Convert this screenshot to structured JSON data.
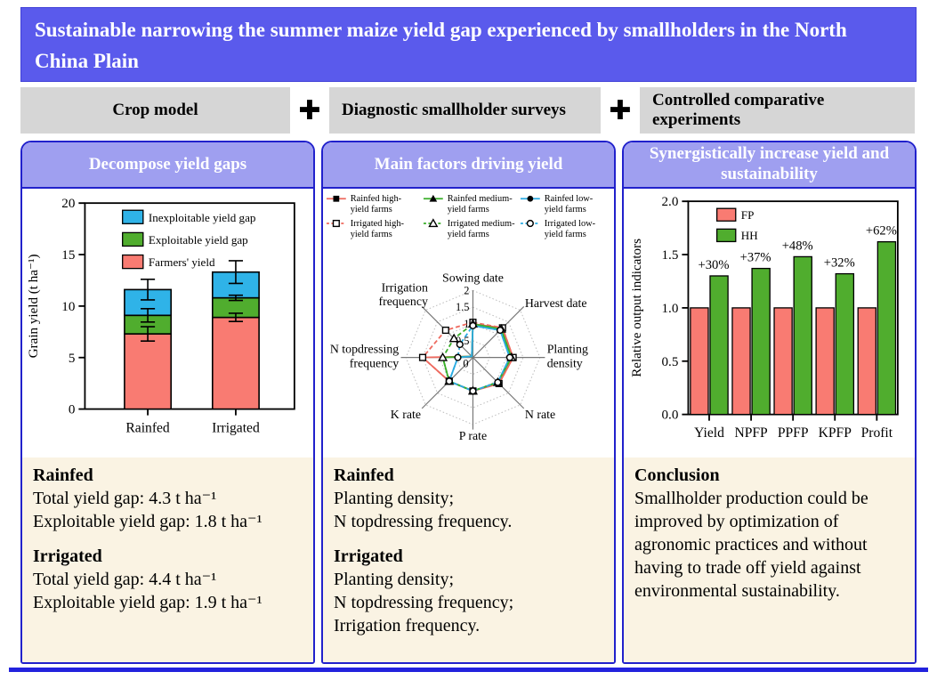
{
  "title": "Sustainable narrowing the summer maize yield gap experienced by smallholders in the North China Plain",
  "methods": {
    "plus": "✚",
    "items": [
      "Crop model",
      "Diagnostic smallholder surveys",
      "Controlled comparative experiments"
    ]
  },
  "colors": {
    "banner_blue": "#5a5aec",
    "header_lavender": "#9f9ff0",
    "panel_border_blue": "#2121cc",
    "method_gray": "#d6d6d6",
    "findings_cream": "#faf3e3",
    "salmon": "#f97b72",
    "green": "#50ad2e",
    "cyan_blue": "#2fb3e8",
    "line_red": "#ee6a5f",
    "line_green": "#3aae2a",
    "line_blue": "#29abe2"
  },
  "panels": [
    {
      "header": "Decompose yield gaps",
      "text": {
        "sections": [
          {
            "heading": "Rainfed",
            "lines": [
              "Total yield gap: 4.3 t ha⁻¹",
              "Exploitable yield gap: 1.8 t ha⁻¹"
            ]
          },
          {
            "heading": "Irrigated",
            "lines": [
              "Total yield gap: 4.4 t ha⁻¹",
              "Exploitable yield gap: 1.9 t ha⁻¹"
            ]
          }
        ]
      }
    },
    {
      "header": "Main factors driving yield",
      "text": {
        "sections": [
          {
            "heading": "Rainfed",
            "lines": [
              "Planting density;",
              "N topdressing frequency."
            ]
          },
          {
            "heading": "Irrigated",
            "lines": [
              "Planting density;",
              "N topdressing frequency;",
              "Irrigation frequency."
            ]
          }
        ]
      }
    },
    {
      "header": "Synergistically increase yield and sustainability",
      "text": {
        "sections": [
          {
            "heading": "Conclusion",
            "lines": [
              "Smallholder production could be improved by optimization of agronomic practices and without having to trade off yield against environmental sustainability."
            ]
          }
        ]
      }
    }
  ],
  "chart_data": [
    {
      "type": "bar",
      "subtype": "stacked",
      "categories": [
        "Rainfed",
        "Irrigated"
      ],
      "series": [
        {
          "name": "Farmers' yield",
          "color": "#f97b72",
          "values": [
            7.3,
            8.9
          ],
          "errors": [
            0.7,
            0.4
          ]
        },
        {
          "name": "Exploitable yield gap",
          "color": "#50ad2e",
          "values": [
            1.8,
            1.9
          ],
          "errors": [
            0.65,
            0.25
          ]
        },
        {
          "name": "Inexploitable yield gap",
          "color": "#2fb3e8",
          "values": [
            2.5,
            2.5
          ],
          "errors": [
            1.0,
            1.1
          ]
        }
      ],
      "ylabel": "Grain yield (t ha⁻¹)",
      "ylim": [
        0,
        20
      ],
      "yticks": [
        0,
        5,
        10,
        15,
        20
      ],
      "legend_position": "top-left-inside",
      "grid": false
    },
    {
      "type": "radar",
      "axes": [
        "Sowing date",
        "Harvest date",
        "Planting density",
        "N rate",
        "P rate",
        "K rate",
        "N topdressing frequency",
        "Irrigation frequency"
      ],
      "rlim": [
        0,
        2
      ],
      "rticks": [
        0,
        0.5,
        1,
        1.5,
        2
      ],
      "series": [
        {
          "name": "Rainfed high-yield farms",
          "color": "#ee6a5f",
          "dash": false,
          "marker": "square-filled",
          "values": [
            1.0,
            1.25,
            1.2,
            1.1,
            1.0,
            1.0,
            1.5,
            0.05
          ]
        },
        {
          "name": "Rainfed medium-yield farms",
          "color": "#3aae2a",
          "dash": false,
          "marker": "triangle-filled",
          "values": [
            1.0,
            1.2,
            1.15,
            1.05,
            1.0,
            1.0,
            0.9,
            0.05
          ]
        },
        {
          "name": "Rainfed low-yield farms",
          "color": "#29abe2",
          "dash": false,
          "marker": "circle-filled",
          "values": [
            0.95,
            1.15,
            1.1,
            1.05,
            1.0,
            1.0,
            0.45,
            0.05
          ]
        },
        {
          "name": "Irrigated high-yield farms",
          "color": "#ee6a5f",
          "dash": true,
          "marker": "square-open",
          "values": [
            1.05,
            1.25,
            1.2,
            1.1,
            1.0,
            1.0,
            1.5,
            1.15
          ]
        },
        {
          "name": "Irrigated medium-yield farms",
          "color": "#3aae2a",
          "dash": true,
          "marker": "triangle-open",
          "values": [
            1.0,
            1.2,
            1.15,
            1.05,
            1.0,
            1.0,
            0.9,
            0.8
          ]
        },
        {
          "name": "Irrigated low-yield farms",
          "color": "#29abe2",
          "dash": true,
          "marker": "circle-open",
          "values": [
            0.95,
            1.15,
            1.1,
            1.05,
            1.0,
            1.0,
            0.45,
            0.55
          ]
        }
      ],
      "legend_position": "top",
      "grid": true
    },
    {
      "type": "bar",
      "subtype": "grouped",
      "categories": [
        "Yield",
        "NPFP",
        "PPFP",
        "KPFP",
        "Profit"
      ],
      "series": [
        {
          "name": "FP",
          "color": "#f97b72",
          "values": [
            1.0,
            1.0,
            1.0,
            1.0,
            1.0
          ]
        },
        {
          "name": "HH",
          "color": "#50ad2e",
          "values": [
            1.3,
            1.37,
            1.48,
            1.32,
            1.62
          ]
        }
      ],
      "bar_labels": [
        "+30%",
        "+37%",
        "+48%",
        "+32%",
        "+62%"
      ],
      "ylabel": "Relative output indicators",
      "ylim": [
        0,
        2
      ],
      "yticks": [
        0,
        0.5,
        1,
        1.5,
        2
      ],
      "legend_position": "top-left-inside",
      "grid": false
    }
  ]
}
